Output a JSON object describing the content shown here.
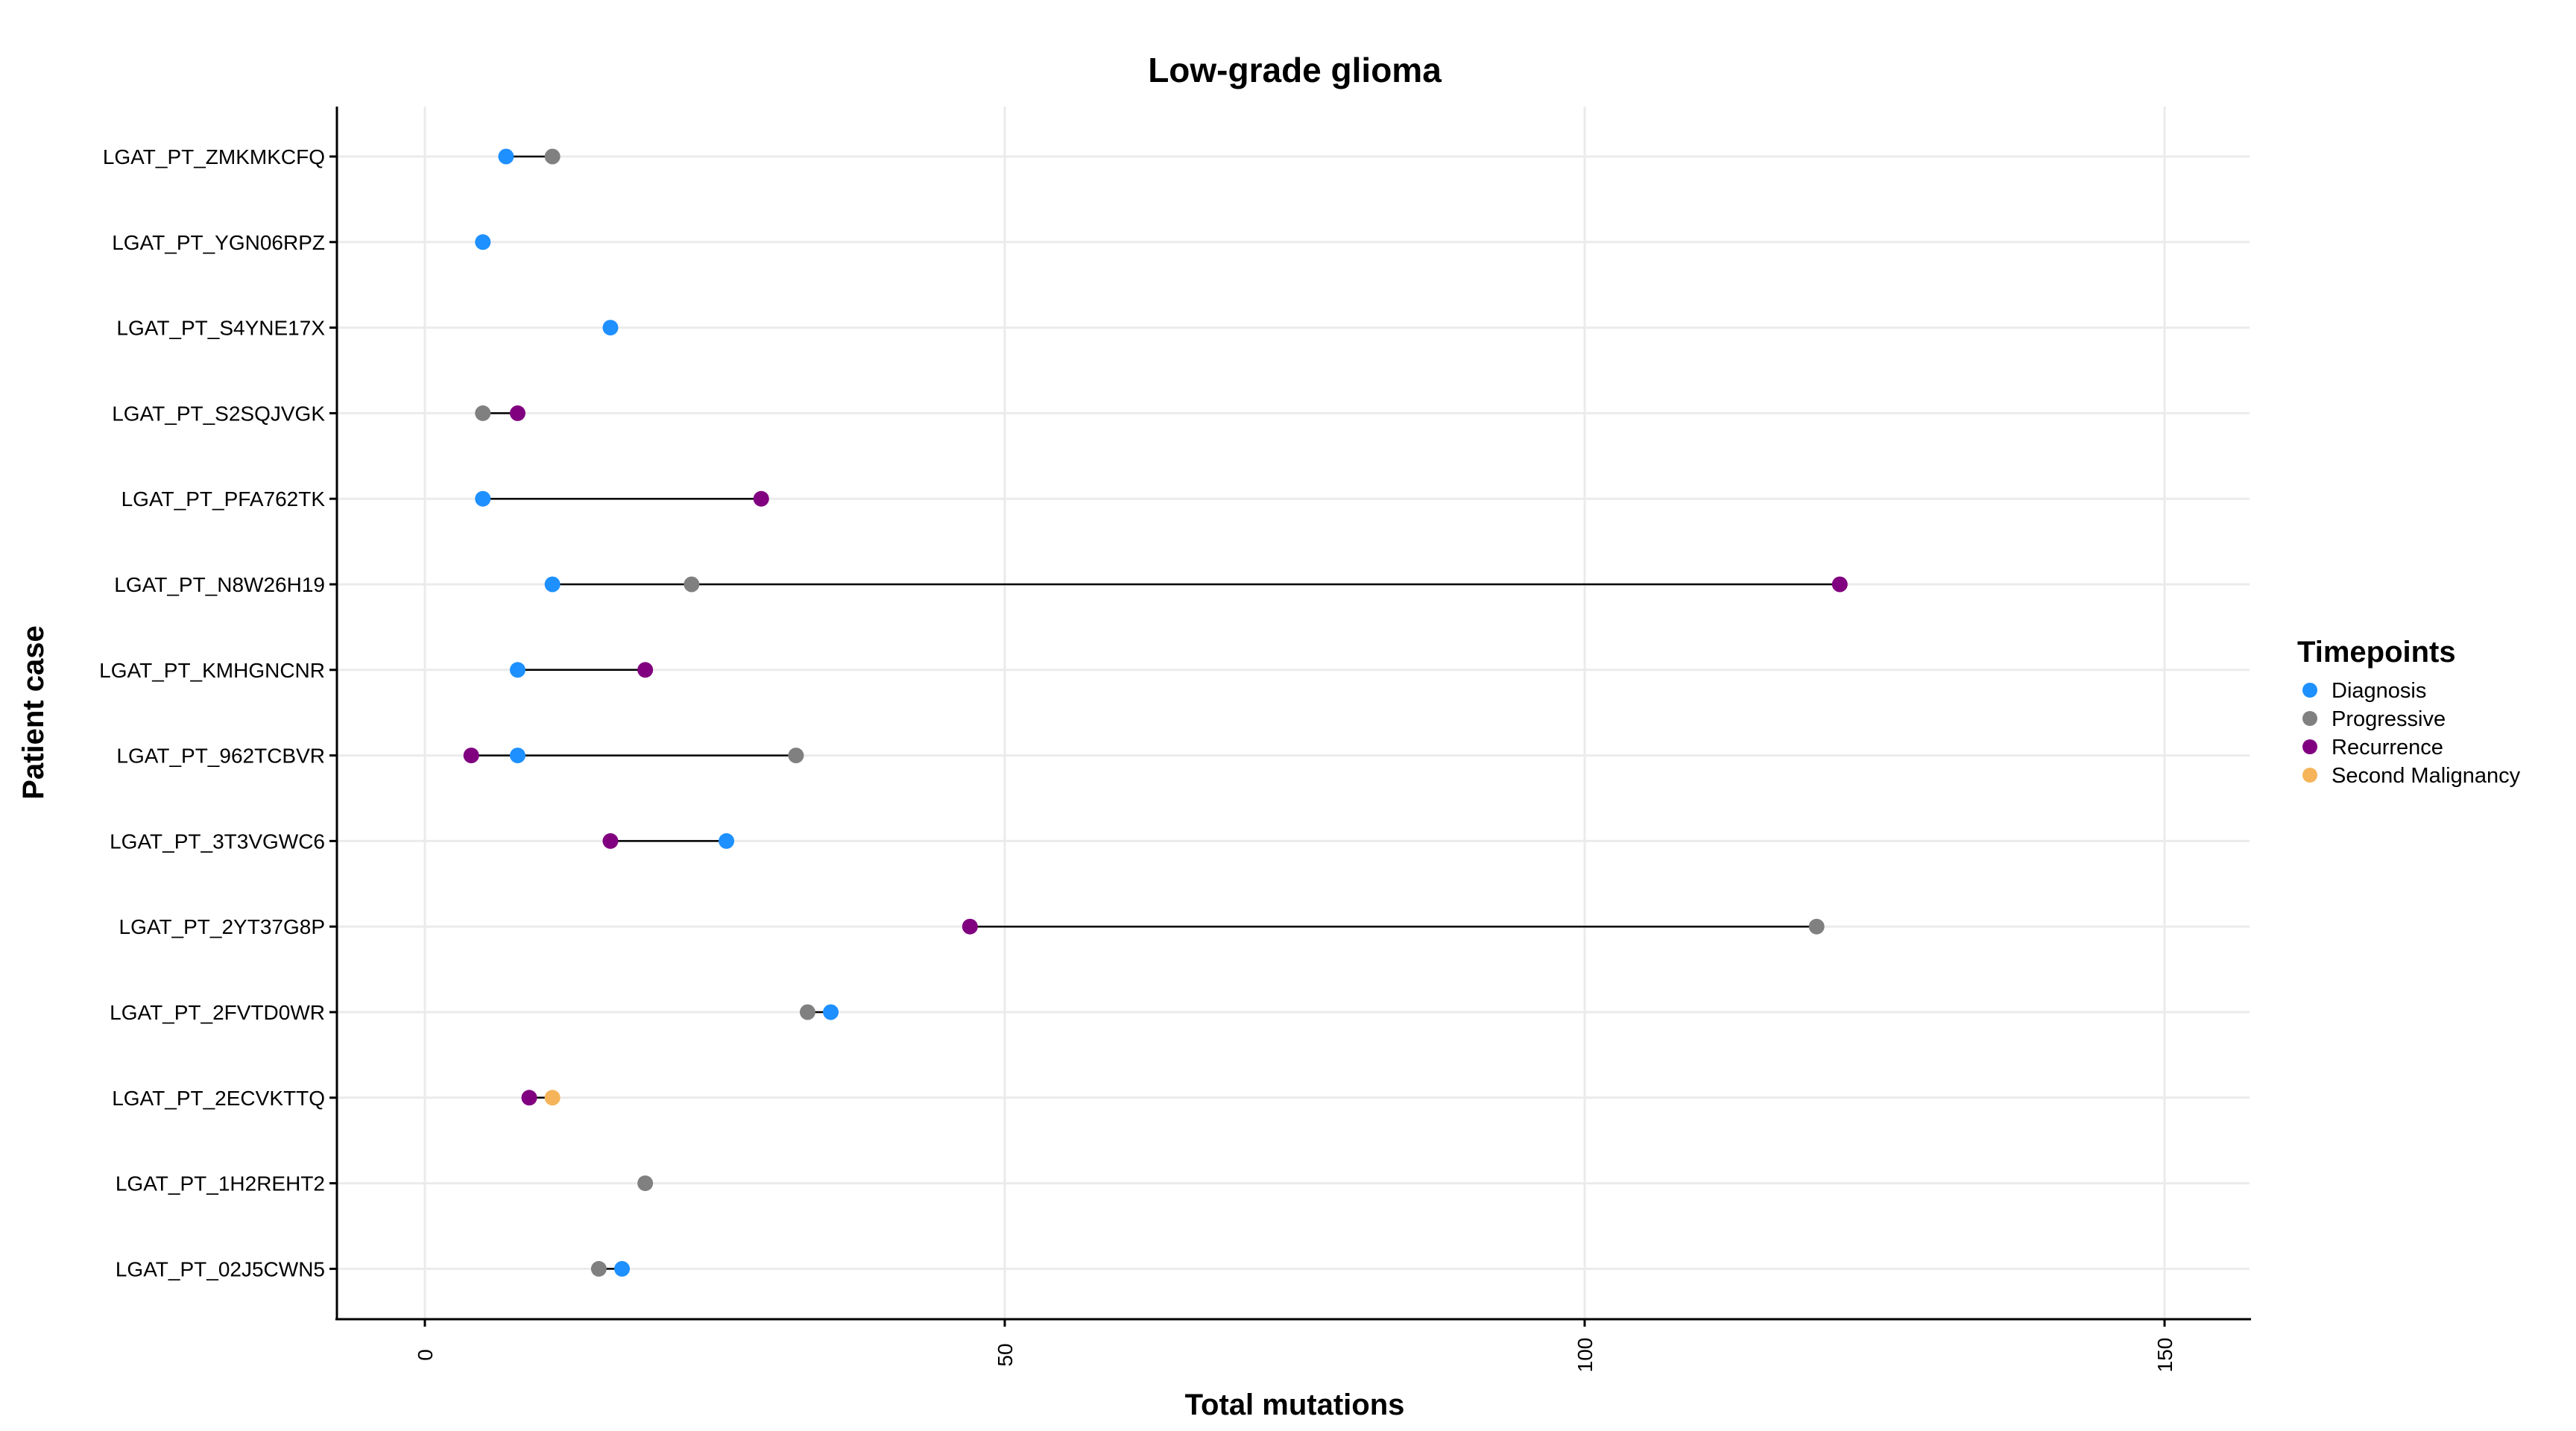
{
  "chart_data": {
    "type": "dumbbell",
    "title": "Low-grade glioma",
    "xlabel": "Total mutations",
    "ylabel": "Patient case",
    "xlim": [
      -7.5,
      157.5
    ],
    "xticks": [
      0,
      50,
      100,
      150
    ],
    "legend": {
      "title": "Timepoints",
      "placement": "right",
      "entries": [
        {
          "name": "Diagnosis",
          "color": "#1E90FF"
        },
        {
          "name": "Progressive",
          "color": "#808080"
        },
        {
          "name": "Recurrence",
          "color": "#800080"
        },
        {
          "name": "Second Malignancy",
          "color": "#F5B45A"
        }
      ]
    },
    "categories": [
      "LGAT_PT_ZMKMKCFQ",
      "LGAT_PT_YGN06RPZ",
      "LGAT_PT_S4YNE17X",
      "LGAT_PT_S2SQJVGK",
      "LGAT_PT_PFA762TK",
      "LGAT_PT_N8W26H19",
      "LGAT_PT_KMHGNCNR",
      "LGAT_PT_962TCBVR",
      "LGAT_PT_3T3VGWC6",
      "LGAT_PT_2YT37G8P",
      "LGAT_PT_2FVTD0WR",
      "LGAT_PT_2ECVKTTQ",
      "LGAT_PT_1H2REHT2",
      "LGAT_PT_02J5CWN5"
    ],
    "points": [
      {
        "case": "LGAT_PT_ZMKMKCFQ",
        "timepoint": "Diagnosis",
        "value": 7
      },
      {
        "case": "LGAT_PT_ZMKMKCFQ",
        "timepoint": "Progressive",
        "value": 11
      },
      {
        "case": "LGAT_PT_YGN06RPZ",
        "timepoint": "Diagnosis",
        "value": 5
      },
      {
        "case": "LGAT_PT_S4YNE17X",
        "timepoint": "Diagnosis",
        "value": 16
      },
      {
        "case": "LGAT_PT_S2SQJVGK",
        "timepoint": "Progressive",
        "value": 5
      },
      {
        "case": "LGAT_PT_S2SQJVGK",
        "timepoint": "Recurrence",
        "value": 8
      },
      {
        "case": "LGAT_PT_PFA762TK",
        "timepoint": "Diagnosis",
        "value": 5
      },
      {
        "case": "LGAT_PT_PFA762TK",
        "timepoint": "Recurrence",
        "value": 29
      },
      {
        "case": "LGAT_PT_N8W26H19",
        "timepoint": "Diagnosis",
        "value": 11
      },
      {
        "case": "LGAT_PT_N8W26H19",
        "timepoint": "Progressive",
        "value": 23
      },
      {
        "case": "LGAT_PT_N8W26H19",
        "timepoint": "Recurrence",
        "value": 122
      },
      {
        "case": "LGAT_PT_KMHGNCNR",
        "timepoint": "Diagnosis",
        "value": 8
      },
      {
        "case": "LGAT_PT_KMHGNCNR",
        "timepoint": "Recurrence",
        "value": 19
      },
      {
        "case": "LGAT_PT_962TCBVR",
        "timepoint": "Recurrence",
        "value": 4
      },
      {
        "case": "LGAT_PT_962TCBVR",
        "timepoint": "Diagnosis",
        "value": 8
      },
      {
        "case": "LGAT_PT_962TCBVR",
        "timepoint": "Progressive",
        "value": 32
      },
      {
        "case": "LGAT_PT_3T3VGWC6",
        "timepoint": "Recurrence",
        "value": 16
      },
      {
        "case": "LGAT_PT_3T3VGWC6",
        "timepoint": "Diagnosis",
        "value": 26
      },
      {
        "case": "LGAT_PT_2YT37G8P",
        "timepoint": "Recurrence",
        "value": 47
      },
      {
        "case": "LGAT_PT_2YT37G8P",
        "timepoint": "Progressive",
        "value": 120
      },
      {
        "case": "LGAT_PT_2FVTD0WR",
        "timepoint": "Progressive",
        "value": 33
      },
      {
        "case": "LGAT_PT_2FVTD0WR",
        "timepoint": "Diagnosis",
        "value": 35
      },
      {
        "case": "LGAT_PT_2ECVKTTQ",
        "timepoint": "Recurrence",
        "value": 9
      },
      {
        "case": "LGAT_PT_2ECVKTTQ",
        "timepoint": "Second Malignancy",
        "value": 11
      },
      {
        "case": "LGAT_PT_1H2REHT2",
        "timepoint": "Progressive",
        "value": 19
      },
      {
        "case": "LGAT_PT_02J5CWN5",
        "timepoint": "Progressive",
        "value": 15
      },
      {
        "case": "LGAT_PT_02J5CWN5",
        "timepoint": "Diagnosis",
        "value": 17
      }
    ]
  }
}
